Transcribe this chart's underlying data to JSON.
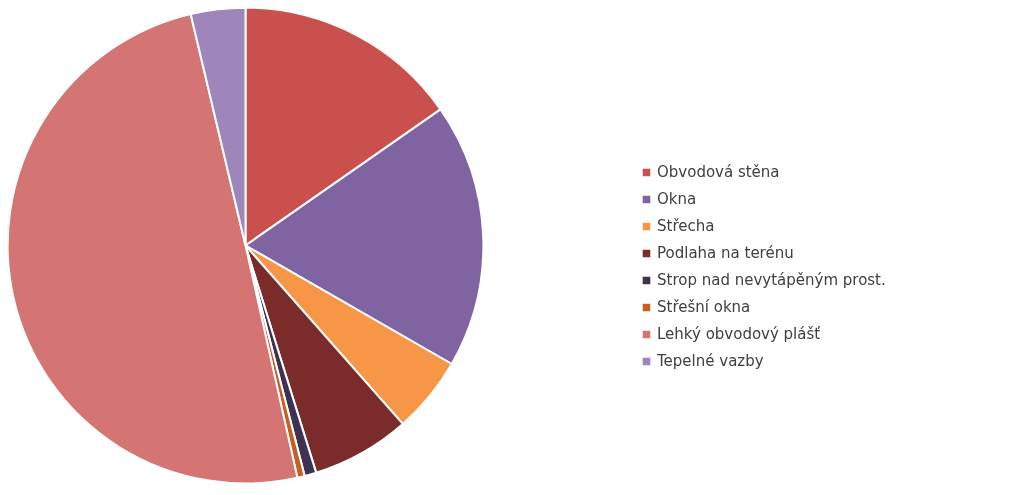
{
  "chart_data": {
    "type": "pie",
    "categories": [
      "Obvodová stěna",
      "Okna",
      "Střecha",
      "Podlaha na terénu",
      "Strop nad nevytápěným prost.",
      "Střešní okna",
      "Lehký obvodový plášť",
      "Tepelné vazby"
    ],
    "values": [
      15.3,
      18,
      5.2,
      6.7,
      0.8,
      0.5,
      49.8,
      3.7
    ],
    "colors": [
      "#c9504c",
      "#8064a2",
      "#f79646",
      "#7b2c2a",
      "#3f3151",
      "#c65f22",
      "#d47574",
      "#9e86bb"
    ],
    "legend": "right"
  }
}
